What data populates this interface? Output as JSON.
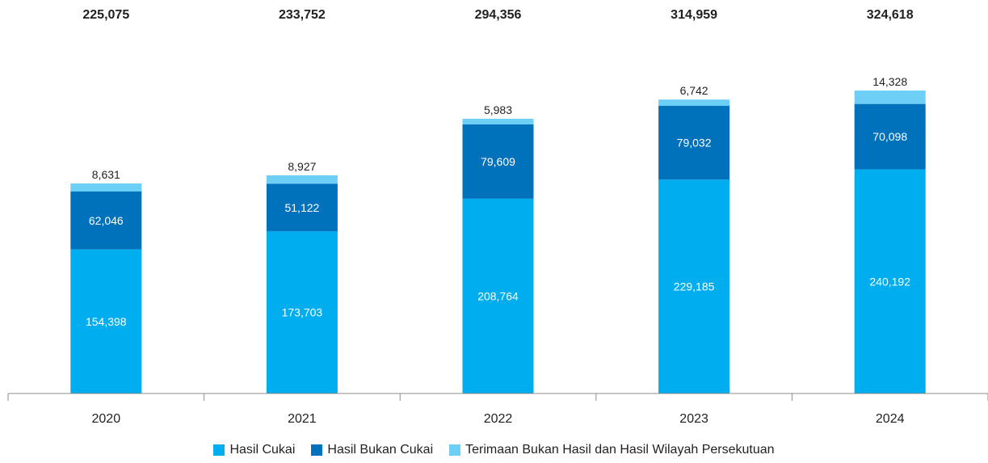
{
  "chart_data": {
    "type": "bar",
    "stacked": true,
    "categories": [
      "2020",
      "2021",
      "2022",
      "2023",
      "2024"
    ],
    "totals": [
      "225,075",
      "233,752",
      "294,356",
      "314,959",
      "324,618"
    ],
    "series": [
      {
        "name": "Hasil Cukai",
        "color": "#00aeef",
        "values": [
          154398,
          173703,
          208764,
          229185,
          240192
        ],
        "labels": [
          "154,398",
          "173,703",
          "208,764",
          "229,185",
          "240,192"
        ]
      },
      {
        "name": "Hasil Bukan Cukai",
        "color": "#0072bc",
        "values": [
          62046,
          51122,
          79609,
          79032,
          70098
        ],
        "labels": [
          "62,046",
          "51,122",
          "79,609",
          "79,032",
          "70,098"
        ]
      },
      {
        "name": "Terimaan Bukan Hasil dan Hasil Wilayah Persekutuan",
        "color": "#6dcff6",
        "values": [
          8631,
          8927,
          5983,
          6742,
          14328
        ],
        "labels": [
          "8,631",
          "8,927",
          "5,983",
          "6,742",
          "14,328"
        ]
      }
    ],
    "ylim": [
      0,
      350000
    ],
    "grid": false,
    "legend_position": "bottom"
  }
}
